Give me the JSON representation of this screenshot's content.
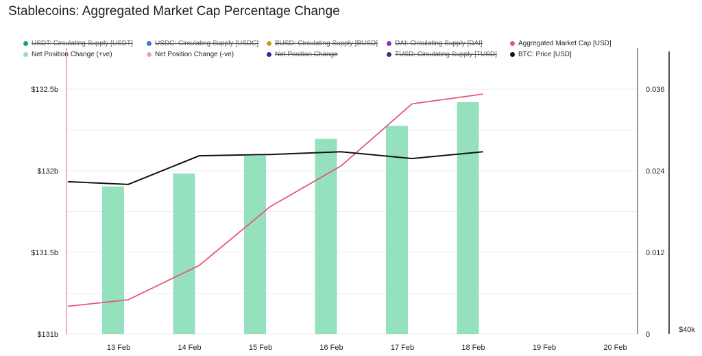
{
  "title": "Stablecoins: Aggregated Market Cap Percentage Change",
  "legend": [
    {
      "label": "USDT: Circulating Supply [USDT]",
      "color": "#1aa36b",
      "active": false
    },
    {
      "label": "USDC: Circulating Supply [USDC]",
      "color": "#3a78d4",
      "active": false
    },
    {
      "label": "BUSD: Circulating Supply [BUSD]",
      "color": "#b9a419",
      "active": false
    },
    {
      "label": "DAI: Circulating Supply [DAI]",
      "color": "#9b2ab8",
      "active": false
    },
    {
      "label": "Aggregated Market Cap [USD]",
      "color": "#e4557b",
      "active": true
    },
    {
      "label": "Net Position Change (+ve)",
      "color": "#8fdfbb",
      "active": true
    },
    {
      "label": "Net Position Change (-ve)",
      "color": "#f2a0a0",
      "active": true
    },
    {
      "label": "Net Position Change",
      "color": "#2a2aa8",
      "active": false
    },
    {
      "label": "TUSD: Circulating Supply [TUSD]",
      "color": "#2b3a7a",
      "active": false
    },
    {
      "label": "BTC: Price [USD]",
      "color": "#111111",
      "active": true
    }
  ],
  "chart_data": {
    "type": "bar",
    "categories": [
      "13 Feb",
      "14 Feb",
      "15 Feb",
      "16 Feb",
      "17 Feb",
      "18 Feb",
      "19 Feb",
      "20 Feb"
    ],
    "left_axis": {
      "ticks": [
        "$132.5b",
        "$132b",
        "$131.5b",
        "$131b"
      ],
      "range": [
        131.0,
        132.5
      ]
    },
    "right_axis": {
      "ticks": [
        "0.036",
        "0.024",
        "0.012",
        "0"
      ],
      "range": [
        0,
        0.036
      ]
    },
    "far_right_axis": {
      "ticks": [
        "$40k"
      ]
    },
    "series": [
      {
        "name": "Net Position Change (+ve)",
        "type": "bar",
        "axis": "right",
        "color": "#8fdfbb",
        "x": [
          "13 Feb",
          "14 Feb",
          "15 Feb",
          "16 Feb",
          "17 Feb",
          "18 Feb"
        ],
        "values": [
          0.0217,
          0.0236,
          0.0262,
          0.0287,
          0.0306,
          0.0341
        ]
      },
      {
        "name": "Aggregated Market Cap [USD]",
        "type": "line",
        "axis": "left",
        "color": "#e4557b",
        "x": [
          12.0,
          12.85,
          13.85,
          14.85,
          15.85,
          16.85,
          17.85
        ],
        "values": [
          131.17,
          131.21,
          131.42,
          131.78,
          132.03,
          132.41,
          132.47
        ]
      },
      {
        "name": "BTC: Price [USD]",
        "type": "line",
        "axis": "right",
        "color": "#111111",
        "x": [
          12.0,
          12.85,
          13.85,
          14.85,
          15.85,
          16.85,
          17.85
        ],
        "values": [
          0.0224,
          0.022,
          0.0262,
          0.0264,
          0.0268,
          0.0258,
          0.0268
        ]
      }
    ]
  }
}
